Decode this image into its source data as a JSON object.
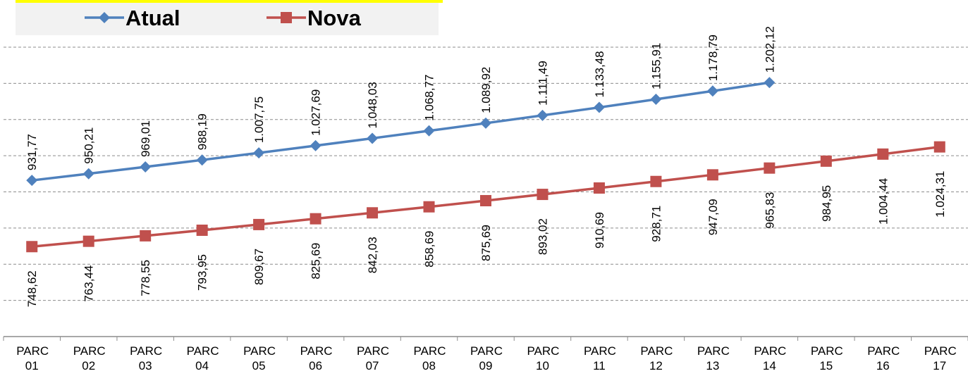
{
  "chart_data": {
    "type": "line",
    "categories": [
      "PARC 01",
      "PARC 02",
      "PARC 03",
      "PARC 04",
      "PARC 05",
      "PARC 06",
      "PARC 07",
      "PARC 08",
      "PARC 09",
      "PARC 10",
      "PARC 11",
      "PARC 12",
      "PARC 13",
      "PARC 14",
      "PARC 15",
      "PARC 16",
      "PARC 17"
    ],
    "series": [
      {
        "name": "Atual",
        "color": "#4f81bd",
        "marker": "diamond",
        "values": [
          931.77,
          950.21,
          969.01,
          988.19,
          1007.75,
          1027.69,
          1048.03,
          1068.77,
          1089.92,
          1111.49,
          1133.48,
          1155.91,
          1178.79,
          1202.12,
          null,
          null,
          null
        ],
        "value_labels": [
          "931,77",
          "950,21",
          "969,01",
          "988,19",
          "1.007,75",
          "1.027,69",
          "1.048,03",
          "1.068,77",
          "1.089,92",
          "1.111,49",
          "1.133,48",
          "1.155,91",
          "1.178,79",
          "1.202,12",
          null,
          null,
          null
        ]
      },
      {
        "name": "Nova",
        "color": "#c0504d",
        "marker": "square",
        "values": [
          748.62,
          763.44,
          778.55,
          793.95,
          809.67,
          825.69,
          842.03,
          858.69,
          875.69,
          893.02,
          910.69,
          928.71,
          947.09,
          965.83,
          984.95,
          1004.44,
          1024.31
        ],
        "value_labels": [
          "748,62",
          "763,44",
          "778,55",
          "793,95",
          "809,67",
          "825,69",
          "842,03",
          "858,69",
          "875,69",
          "893,02",
          "910,69",
          "928,71",
          "947,09",
          "965,83",
          "984,95",
          "1.004,44",
          "1.024,31"
        ]
      }
    ],
    "ylim": [
      500,
      1300
    ],
    "yticks": [
      600,
      700,
      800,
      900,
      1000,
      1100,
      1200,
      1300
    ],
    "grid": true,
    "legend": "top-left"
  }
}
